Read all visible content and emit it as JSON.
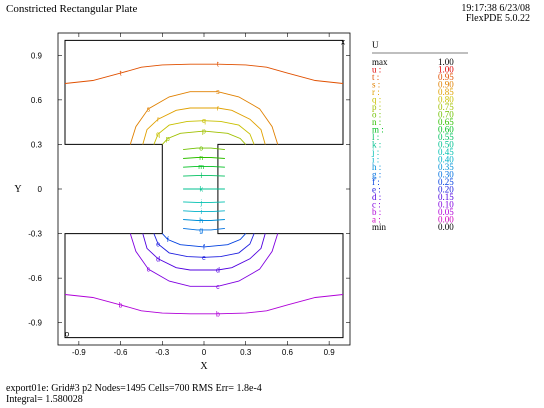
{
  "header": {
    "title": "Constricted Rectangular Plate",
    "timestamp": "19:17:38 6/23/08",
    "version": "FlexPDE 5.0.22"
  },
  "footer": {
    "line1": "export01e:  Grid#3  p2  Nodes=1495 Cells=700 RMS Err= 1.8e-4",
    "line2": "Integral=  1.580028"
  },
  "chart_data": {
    "type": "contour",
    "title": "",
    "xlabel": "X",
    "ylabel": "Y",
    "variable": "U",
    "xlim": [
      -1.05,
      1.05
    ],
    "ylim": [
      -1.05,
      1.05
    ],
    "x_ticks": [
      "-0.9",
      "-0.6",
      "-0.3",
      "0",
      "0.3",
      "0.6",
      "0.9"
    ],
    "y_ticks": [
      "0.9",
      "0.6",
      "0.3",
      "0",
      "-0.3",
      "-0.6",
      "-0.9"
    ],
    "x_tick_values": [
      -0.9,
      -0.6,
      -0.3,
      0,
      0.3,
      0.6,
      0.9
    ],
    "y_tick_values": [
      0.9,
      0.6,
      0.3,
      0,
      -0.3,
      -0.6,
      -0.9
    ],
    "domain_outline": [
      [
        -1,
        1
      ],
      [
        1,
        1
      ],
      [
        1,
        0.3
      ],
      [
        0.1,
        0.3
      ],
      [
        0.1,
        -0.3
      ],
      [
        1,
        -0.3
      ],
      [
        1,
        -1
      ],
      [
        -1,
        -1
      ],
      [
        -1,
        -0.3
      ],
      [
        -0.3,
        -0.3
      ],
      [
        -0.3,
        0.3
      ],
      [
        -1,
        0.3
      ]
    ],
    "legend_header": "U",
    "legend": [
      {
        "label": "max",
        "value": "1.00",
        "color": "#000000"
      },
      {
        "label": "u :",
        "value": "1.00",
        "color": "#e00000"
      },
      {
        "label": "t :",
        "value": "0.95",
        "color": "#e05000"
      },
      {
        "label": "s :",
        "value": "0.90",
        "color": "#e08000"
      },
      {
        "label": "r :",
        "value": "0.85",
        "color": "#e0a000"
      },
      {
        "label": "q :",
        "value": "0.80",
        "color": "#c8c000"
      },
      {
        "label": "p :",
        "value": "0.75",
        "color": "#a0c000"
      },
      {
        "label": "o :",
        "value": "0.70",
        "color": "#70c000"
      },
      {
        "label": "n :",
        "value": "0.65",
        "color": "#30c000"
      },
      {
        "label": "m :",
        "value": "0.60",
        "color": "#00c020"
      },
      {
        "label": "l :",
        "value": "0.55",
        "color": "#00c060"
      },
      {
        "label": "k :",
        "value": "0.50",
        "color": "#00c090"
      },
      {
        "label": "j :",
        "value": "0.45",
        "color": "#00c0b0"
      },
      {
        "label": "i :",
        "value": "0.40",
        "color": "#00b0c8"
      },
      {
        "label": "h :",
        "value": "0.35",
        "color": "#0090d8"
      },
      {
        "label": "g :",
        "value": "0.30",
        "color": "#0070e0"
      },
      {
        "label": "f :",
        "value": "0.25",
        "color": "#0040e0"
      },
      {
        "label": "e :",
        "value": "0.20",
        "color": "#2020e0"
      },
      {
        "label": "d :",
        "value": "0.15",
        "color": "#5000e0"
      },
      {
        "label": "c :",
        "value": "0.10",
        "color": "#8000e0"
      },
      {
        "label": "b :",
        "value": "0.05",
        "color": "#b000d8"
      },
      {
        "label": "a :",
        "value": "0.00",
        "color": "#d000c0"
      },
      {
        "label": "min",
        "value": "0.00",
        "color": "#000000"
      }
    ],
    "contours": [
      {
        "letter": "t",
        "value": 0.95,
        "region": "upper",
        "points": [
          [
            -1.0,
            0.71
          ],
          [
            -0.8,
            0.73
          ],
          [
            -0.6,
            0.78
          ],
          [
            -0.45,
            0.82
          ],
          [
            -0.3,
            0.835
          ],
          [
            -0.1,
            0.84
          ],
          [
            0.1,
            0.84
          ],
          [
            0.3,
            0.835
          ],
          [
            0.45,
            0.82
          ],
          [
            0.6,
            0.78
          ],
          [
            0.8,
            0.73
          ],
          [
            1.0,
            0.71
          ]
        ]
      },
      {
        "letter": "s",
        "value": 0.9,
        "region": "upper",
        "points": [
          [
            -0.53,
            0.3
          ],
          [
            -0.49,
            0.42
          ],
          [
            -0.4,
            0.54
          ],
          [
            -0.25,
            0.62
          ],
          [
            -0.1,
            0.655
          ],
          [
            0.1,
            0.655
          ],
          [
            0.25,
            0.62
          ],
          [
            0.4,
            0.54
          ],
          [
            0.49,
            0.42
          ],
          [
            0.53,
            0.3
          ]
        ]
      },
      {
        "letter": "r",
        "value": 0.85,
        "region": "upper",
        "points": [
          [
            -0.44,
            0.3
          ],
          [
            -0.41,
            0.4
          ],
          [
            -0.33,
            0.47
          ],
          [
            -0.2,
            0.53
          ],
          [
            -0.1,
            0.545
          ],
          [
            0.1,
            0.545
          ],
          [
            0.2,
            0.53
          ],
          [
            0.33,
            0.47
          ],
          [
            0.41,
            0.4
          ],
          [
            0.44,
            0.3
          ]
        ]
      },
      {
        "letter": "q",
        "value": 0.8,
        "region": "upper",
        "points": [
          [
            -0.36,
            0.3
          ],
          [
            -0.33,
            0.37
          ],
          [
            -0.25,
            0.43
          ],
          [
            -0.12,
            0.455
          ],
          [
            0,
            0.46
          ],
          [
            0.12,
            0.455
          ],
          [
            0.25,
            0.43
          ],
          [
            0.33,
            0.37
          ],
          [
            0.36,
            0.3
          ]
        ]
      },
      {
        "letter": "p",
        "value": 0.75,
        "region": "upper",
        "points": [
          [
            -0.3,
            0.3
          ],
          [
            -0.26,
            0.34
          ],
          [
            -0.17,
            0.375
          ],
          [
            0,
            0.39
          ],
          [
            0.17,
            0.375
          ],
          [
            0.26,
            0.34
          ],
          [
            0.3,
            0.3
          ]
        ]
      },
      {
        "letter": "o",
        "value": 0.7,
        "region": "neck",
        "points": [
          [
            -0.15,
            0.265
          ],
          [
            -0.05,
            0.275
          ],
          [
            0.05,
            0.275
          ],
          [
            0.15,
            0.265
          ]
        ]
      },
      {
        "letter": "n",
        "value": 0.65,
        "region": "neck",
        "points": [
          [
            -0.15,
            0.205
          ],
          [
            -0.05,
            0.212
          ],
          [
            0.05,
            0.212
          ],
          [
            0.15,
            0.205
          ]
        ]
      },
      {
        "letter": "m",
        "value": 0.6,
        "region": "neck",
        "points": [
          [
            -0.15,
            0.147
          ],
          [
            -0.05,
            0.152
          ],
          [
            0.05,
            0.152
          ],
          [
            0.15,
            0.147
          ]
        ]
      },
      {
        "letter": "l",
        "value": 0.55,
        "region": "neck",
        "points": [
          [
            -0.15,
            0.087
          ],
          [
            -0.05,
            0.09
          ],
          [
            0.05,
            0.09
          ],
          [
            0.15,
            0.087
          ]
        ]
      },
      {
        "letter": "k",
        "value": 0.5,
        "region": "neck",
        "points": [
          [
            -0.15,
            0.0
          ],
          [
            0.15,
            0.0
          ]
        ]
      },
      {
        "letter": "j",
        "value": 0.45,
        "region": "neck",
        "points": [
          [
            -0.15,
            -0.087
          ],
          [
            -0.05,
            -0.09
          ],
          [
            0.05,
            -0.09
          ],
          [
            0.15,
            -0.087
          ]
        ]
      },
      {
        "letter": "i",
        "value": 0.4,
        "region": "neck",
        "points": [
          [
            -0.15,
            -0.147
          ],
          [
            -0.05,
            -0.152
          ],
          [
            0.05,
            -0.152
          ],
          [
            0.15,
            -0.147
          ]
        ]
      },
      {
        "letter": "h",
        "value": 0.35,
        "region": "neck",
        "points": [
          [
            -0.15,
            -0.205
          ],
          [
            -0.05,
            -0.212
          ],
          [
            0.05,
            -0.212
          ],
          [
            0.15,
            -0.205
          ]
        ]
      },
      {
        "letter": "g",
        "value": 0.3,
        "region": "neck",
        "points": [
          [
            -0.15,
            -0.265
          ],
          [
            -0.05,
            -0.275
          ],
          [
            0.05,
            -0.275
          ],
          [
            0.15,
            -0.265
          ]
        ]
      },
      {
        "letter": "f",
        "value": 0.25,
        "region": "lower",
        "points": [
          [
            -0.3,
            -0.3
          ],
          [
            -0.26,
            -0.34
          ],
          [
            -0.17,
            -0.375
          ],
          [
            0,
            -0.39
          ],
          [
            0.17,
            -0.375
          ],
          [
            0.26,
            -0.34
          ],
          [
            0.3,
            -0.3
          ]
        ]
      },
      {
        "letter": "e",
        "value": 0.2,
        "region": "lower",
        "points": [
          [
            -0.36,
            -0.3
          ],
          [
            -0.33,
            -0.37
          ],
          [
            -0.25,
            -0.43
          ],
          [
            -0.12,
            -0.455
          ],
          [
            0,
            -0.46
          ],
          [
            0.12,
            -0.455
          ],
          [
            0.25,
            -0.43
          ],
          [
            0.33,
            -0.37
          ],
          [
            0.36,
            -0.3
          ]
        ]
      },
      {
        "letter": "d",
        "value": 0.15,
        "region": "lower",
        "points": [
          [
            -0.44,
            -0.3
          ],
          [
            -0.41,
            -0.4
          ],
          [
            -0.33,
            -0.47
          ],
          [
            -0.2,
            -0.53
          ],
          [
            -0.1,
            -0.545
          ],
          [
            0.1,
            -0.545
          ],
          [
            0.2,
            -0.53
          ],
          [
            0.33,
            -0.47
          ],
          [
            0.41,
            -0.4
          ],
          [
            0.44,
            -0.3
          ]
        ]
      },
      {
        "letter": "c",
        "value": 0.1,
        "region": "lower",
        "points": [
          [
            -0.53,
            -0.3
          ],
          [
            -0.49,
            -0.42
          ],
          [
            -0.4,
            -0.54
          ],
          [
            -0.25,
            -0.62
          ],
          [
            -0.1,
            -0.655
          ],
          [
            0.1,
            -0.655
          ],
          [
            0.25,
            -0.62
          ],
          [
            0.4,
            -0.54
          ],
          [
            0.49,
            -0.42
          ],
          [
            0.53,
            -0.3
          ]
        ]
      },
      {
        "letter": "b",
        "value": 0.05,
        "region": "lower",
        "points": [
          [
            -1.0,
            -0.71
          ],
          [
            -0.8,
            -0.73
          ],
          [
            -0.6,
            -0.78
          ],
          [
            -0.45,
            -0.82
          ],
          [
            -0.3,
            -0.835
          ],
          [
            -0.1,
            -0.84
          ],
          [
            0.1,
            -0.84
          ],
          [
            0.3,
            -0.835
          ],
          [
            0.45,
            -0.82
          ],
          [
            0.6,
            -0.78
          ],
          [
            0.8,
            -0.73
          ],
          [
            1.0,
            -0.71
          ]
        ]
      }
    ],
    "markers": [
      {
        "symbol": "x",
        "x": 1.0,
        "y": 1.0
      },
      {
        "symbol": "o",
        "x": -1.0,
        "y": -1.0
      }
    ]
  }
}
